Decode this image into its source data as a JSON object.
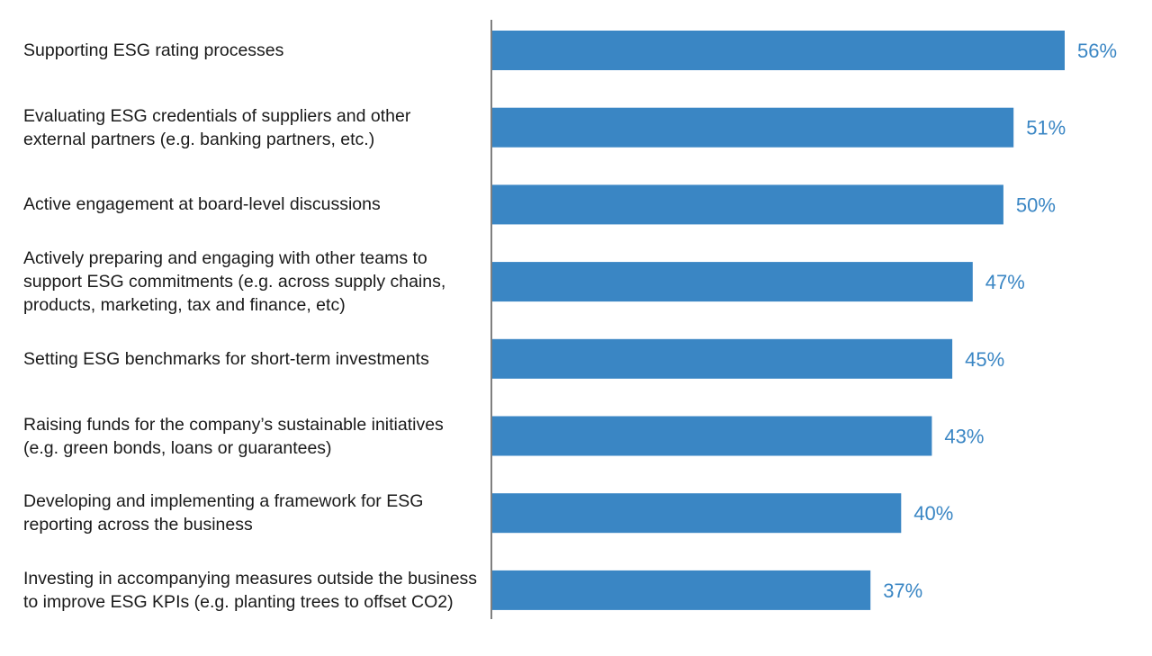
{
  "chart_data": {
    "type": "bar",
    "orientation": "horizontal",
    "title": "",
    "xlabel": "",
    "ylabel": "",
    "xlim": [
      0,
      56
    ],
    "grid": false,
    "legend": "none",
    "bar_color": "#3a86c4",
    "label_color": "#3a86c4",
    "axis_color": "#555555",
    "categories": [
      [
        "Supporting ESG rating processes"
      ],
      [
        "Evaluating ESG credentials of suppliers and other",
        "external partners (e.g. banking partners, etc.)"
      ],
      [
        "Active engagement at board-level discussions"
      ],
      [
        "Actively preparing and engaging with other teams to",
        "support ESG commitments (e.g. across supply chains,",
        "products, marketing, tax and finance, etc)"
      ],
      [
        "Setting ESG benchmarks for short-term investments"
      ],
      [
        "Raising funds for the company’s sustainable initiatives",
        "(e.g. green bonds, loans or guarantees)"
      ],
      [
        "Developing and implementing a framework for ESG",
        "reporting across the business"
      ],
      [
        "Investing in accompanying measures outside the business",
        "to improve ESG KPIs (e.g. planting trees to offset CO2)"
      ]
    ],
    "values": [
      56,
      51,
      50,
      47,
      45,
      43,
      40,
      37
    ],
    "value_labels": [
      "56%",
      "51%",
      "50%",
      "47%",
      "45%",
      "43%",
      "40%",
      "37%"
    ]
  }
}
